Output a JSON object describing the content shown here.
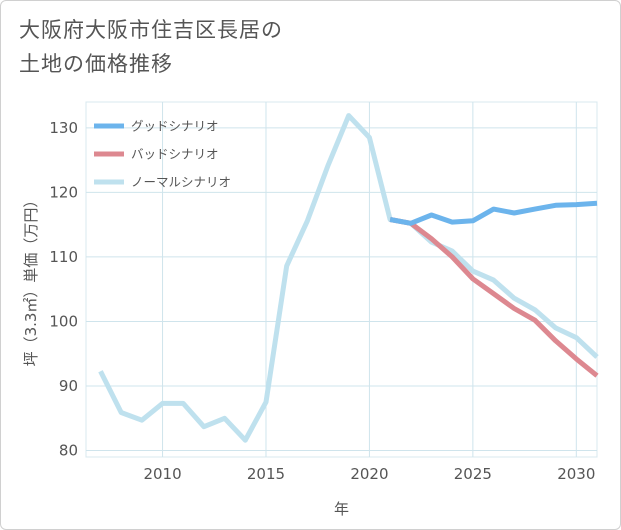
{
  "title_lines": [
    "大阪府大阪市住吉区長居の",
    "土地の価格推移"
  ],
  "chart_data": {
    "type": "line",
    "title": "大阪府大阪市住吉区長居の土地の価格推移",
    "xlabel": "年",
    "ylabel": "坪（3.3㎡）単価（万円）",
    "xlim": [
      2006.3,
      2031
    ],
    "ylim": [
      79,
      134
    ],
    "xticks": [
      2010,
      2015,
      2020,
      2025,
      2030
    ],
    "yticks": [
      80,
      90,
      100,
      110,
      120,
      130
    ],
    "legend_position": "top-left",
    "series": [
      {
        "name": "グッドシナリオ",
        "color": "#6cb4ec",
        "x": [
          2021,
          2022,
          2023,
          2024,
          2025,
          2026,
          2027,
          2028,
          2029,
          2030,
          2031
        ],
        "y": [
          115.8,
          115.2,
          116.5,
          115.4,
          115.6,
          117.4,
          116.8,
          117.4,
          118.0,
          118.1,
          118.3
        ]
      },
      {
        "name": "バッドシナリオ",
        "color": "#dd8890",
        "x": [
          2021,
          2022,
          2023,
          2024,
          2025,
          2026,
          2027,
          2028,
          2029,
          2030,
          2031
        ],
        "y": [
          115.8,
          115.2,
          112.8,
          110.0,
          106.6,
          104.3,
          102.0,
          100.2,
          97.0,
          94.2,
          91.6
        ]
      },
      {
        "name": "ノーマルシナリオ",
        "color": "#bfe1ee",
        "x": [
          2007,
          2008,
          2009,
          2010,
          2011,
          2012,
          2013,
          2014,
          2015,
          2016,
          2017,
          2018,
          2019,
          2020,
          2021,
          2022,
          2023,
          2024,
          2025,
          2026,
          2027,
          2028,
          2029,
          2030,
          2031
        ],
        "y": [
          92.3,
          85.9,
          84.7,
          87.3,
          87.3,
          83.7,
          85.0,
          81.6,
          87.5,
          108.6,
          115.6,
          124.2,
          131.9,
          128.5,
          115.8,
          115.2,
          112.3,
          110.9,
          107.8,
          106.4,
          103.6,
          101.8,
          99.0,
          97.5,
          94.5
        ]
      }
    ]
  }
}
